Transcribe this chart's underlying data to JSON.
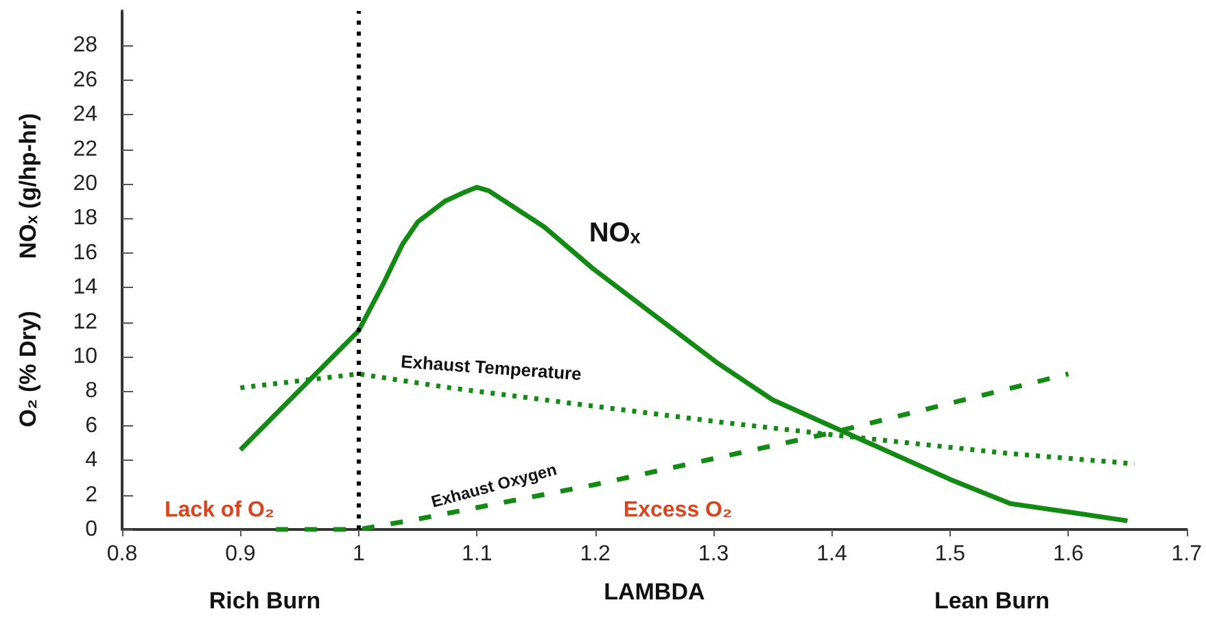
{
  "chart_data": {
    "type": "line",
    "xlabel": "LAMBDA",
    "ylabel": "O₂ (% Dry)        NOₓ (g/hp-hr)",
    "xlim": [
      0.8,
      1.7
    ],
    "xticks": [
      0.8,
      0.9,
      1,
      1.1,
      1.2,
      1.3,
      1.4,
      1.5,
      1.6,
      1.7
    ],
    "ylim": [
      0,
      30
    ],
    "yticks": [
      0,
      2,
      4,
      6,
      8,
      10,
      12,
      14,
      16,
      18,
      20,
      22,
      24,
      26,
      28
    ],
    "grid": false,
    "marker": "none",
    "series": [
      {
        "name": "NOₓ",
        "color": "#138a13",
        "line_style": "solid",
        "x": [
          0.9,
          0.939,
          1.0,
          1.02,
          1.037,
          1.05,
          1.073,
          1.089,
          1.1,
          1.11,
          1.157,
          1.198,
          1.302,
          1.35,
          1.5,
          1.551,
          1.601,
          1.65
        ],
        "values": [
          4.6,
          7.3,
          11.5,
          14.1,
          16.5,
          17.8,
          19.0,
          19.5,
          19.8,
          19.6,
          17.5,
          15.1,
          9.7,
          7.5,
          2.9,
          1.5,
          1.0,
          0.5
        ]
      },
      {
        "name": "Exhaust Temperature",
        "color": "#138a13",
        "line_style": "dotted",
        "x": [
          0.9,
          1.0,
          1.077,
          1.18,
          1.307,
          1.411,
          1.549,
          1.656
        ],
        "values": [
          8.2,
          9.0,
          8.2,
          7.3,
          6.2,
          5.4,
          4.4,
          3.8
        ]
      },
      {
        "name": "Exhaust Oxygen",
        "color": "#138a13",
        "line_style": "dashed",
        "x": [
          0.93,
          1.0,
          1.05,
          1.2,
          1.4,
          1.6
        ],
        "values": [
          0,
          0,
          0.6,
          2.6,
          5.6,
          9.0
        ]
      }
    ],
    "ref_lines": [
      {
        "axis": "x",
        "value": 1,
        "color": "#000000",
        "line_style": "dotted"
      }
    ],
    "annotations": [
      "Lack of O₂",
      "Excess O₂",
      "Rich Burn",
      "Lean Burn"
    ]
  }
}
